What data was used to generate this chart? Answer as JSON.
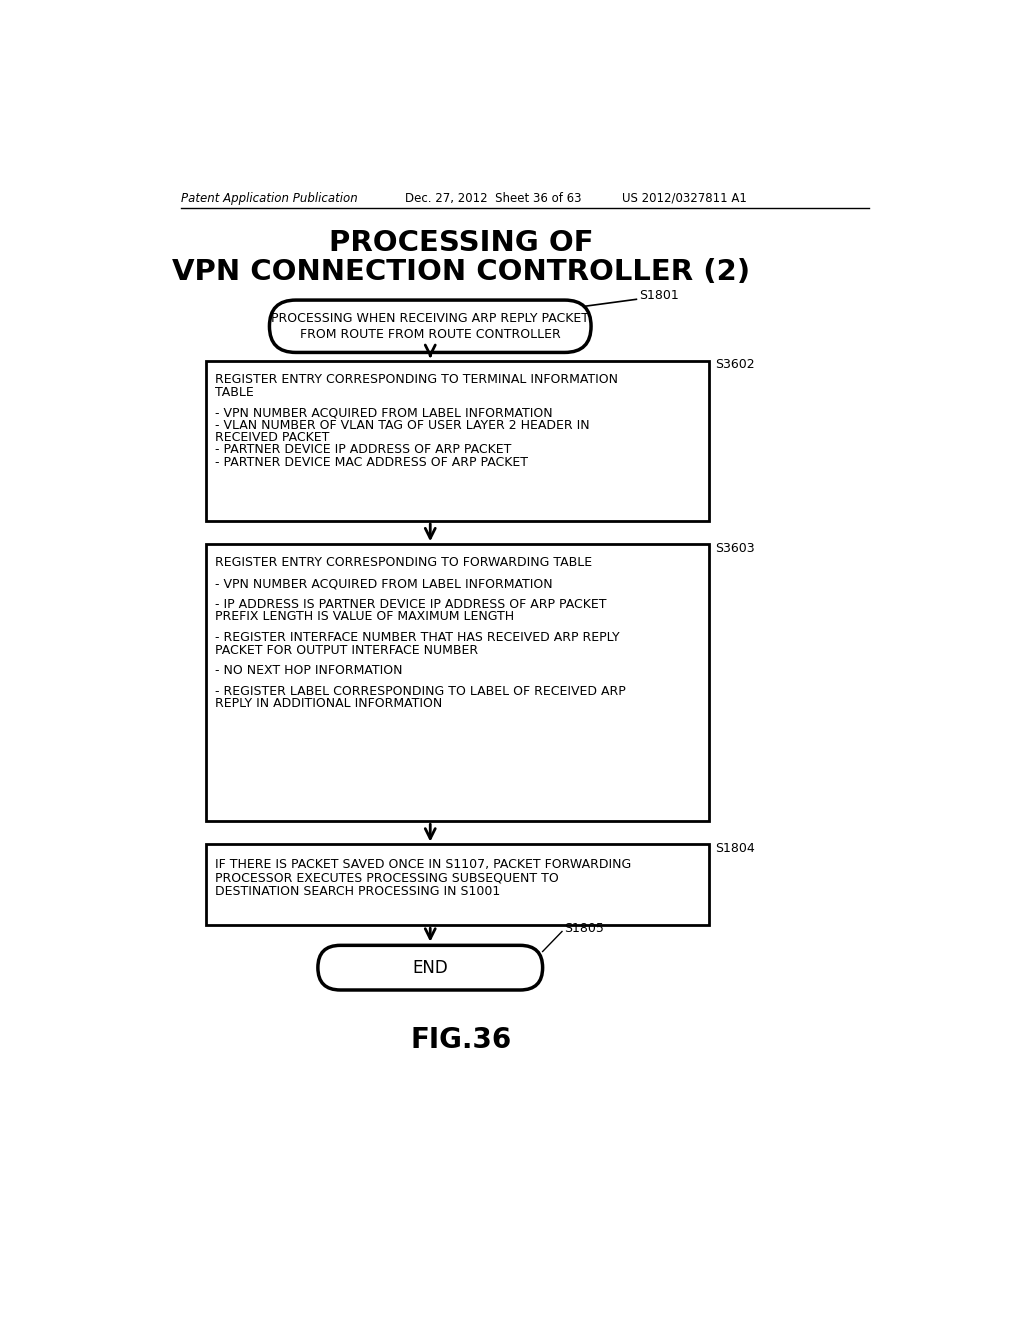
{
  "bg_color": "#ffffff",
  "header_left": "Patent Application Publication",
  "header_mid": "Dec. 27, 2012  Sheet 36 of 63",
  "header_right": "US 2012/0327811 A1",
  "title_line1": "PROCESSING OF",
  "title_line2": "VPN CONNECTION CONTROLLER (2)",
  "fig_label": "FIG.36",
  "s1801_label": "S1801",
  "s3602_label": "S3602",
  "s3603_label": "S3603",
  "s1804_label": "S1804",
  "s1805_label": "S1805",
  "oval_text_line1": "PROCESSING WHEN RECEIVING ARP REPLY PACKET",
  "oval_text_line2": "FROM ROUTE FROM ROUTE CONTROLLER",
  "box1_lines": [
    "REGISTER ENTRY CORRESPONDING TO TERMINAL INFORMATION",
    "TABLE",
    "",
    "- VPN NUMBER ACQUIRED FROM LABEL INFORMATION",
    "- VLAN NUMBER OF VLAN TAG OF USER LAYER 2 HEADER IN",
    "RECEIVED PACKET",
    "- PARTNER DEVICE IP ADDRESS OF ARP PACKET",
    "- PARTNER DEVICE MAC ADDRESS OF ARP PACKET"
  ],
  "box2_lines": [
    "REGISTER ENTRY CORRESPONDING TO FORWARDING TABLE",
    "",
    "- VPN NUMBER ACQUIRED FROM LABEL INFORMATION",
    "",
    "- IP ADDRESS IS PARTNER DEVICE IP ADDRESS OF ARP PACKET",
    "PREFIX LENGTH IS VALUE OF MAXIMUM LENGTH",
    "",
    "- REGISTER INTERFACE NUMBER THAT HAS RECEIVED ARP REPLY",
    "PACKET FOR OUTPUT INTERFACE NUMBER",
    "",
    "- NO NEXT HOP INFORMATION",
    "",
    "- REGISTER LABEL CORRESPONDING TO LABEL OF RECEIVED ARP",
    "REPLY IN ADDITIONAL INFORMATION"
  ],
  "box3_lines": [
    "IF THERE IS PACKET SAVED ONCE IN S1107, PACKET FORWARDING",
    "PROCESSOR EXECUTES PROCESSING SUBSEQUENT TO",
    "DESTINATION SEARCH PROCESSING IN S1001"
  ],
  "end_text": "END"
}
